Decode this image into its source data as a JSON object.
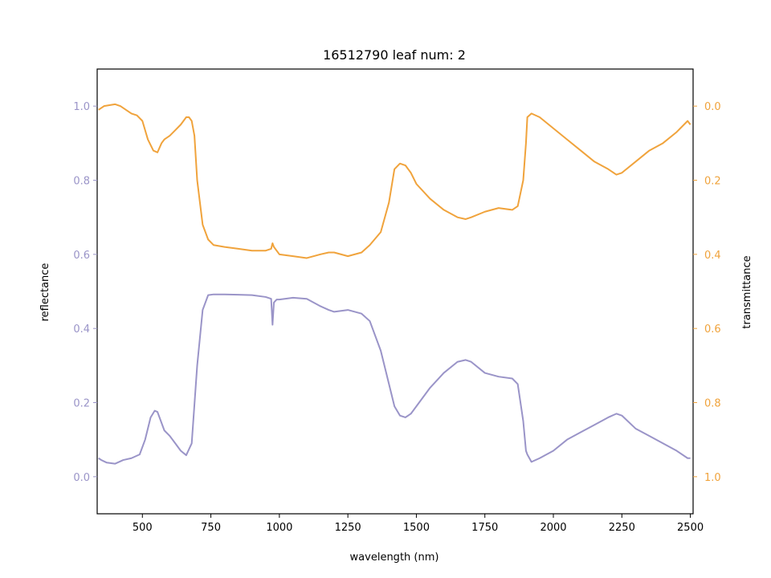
{
  "chart_data": {
    "type": "line",
    "title": "16512790 leaf num: 2",
    "xlabel": "wavelength (nm)",
    "xlim": [
      335,
      2510
    ],
    "x_ticks": [
      500,
      750,
      1000,
      1250,
      1500,
      1750,
      2000,
      2250,
      2500
    ],
    "y_left": {
      "label": "reflectance",
      "lim": [
        -0.1,
        1.1
      ],
      "ticks": [
        0.0,
        0.2,
        0.4,
        0.6,
        0.8,
        1.0
      ],
      "tick_labels": [
        "0.0",
        "0.2",
        "0.4",
        "0.6",
        "0.8",
        "1.0"
      ],
      "color": "#9a94c8"
    },
    "y_right": {
      "label": "transmittance",
      "lim": [
        1.1,
        -0.1
      ],
      "inverted": true,
      "ticks": [
        0.0,
        0.2,
        0.4,
        0.6,
        0.8,
        1.0
      ],
      "tick_labels": [
        "0.0",
        "0.2",
        "0.4",
        "0.6",
        "0.8",
        "1.0"
      ],
      "color": "#f0a33c"
    },
    "series": [
      {
        "axis": "left",
        "color": "#9a94c8",
        "x": [
          340,
          350,
          370,
          400,
          430,
          460,
          490,
          510,
          530,
          545,
          555,
          565,
          580,
          600,
          620,
          640,
          660,
          680,
          700,
          720,
          740,
          760,
          800,
          850,
          900,
          950,
          970,
          975,
          980,
          990,
          1000,
          1050,
          1100,
          1150,
          1180,
          1200,
          1250,
          1300,
          1330,
          1370,
          1400,
          1420,
          1440,
          1460,
          1480,
          1500,
          1550,
          1600,
          1650,
          1680,
          1700,
          1750,
          1800,
          1850,
          1870,
          1890,
          1900,
          1905,
          1920,
          1950,
          2000,
          2050,
          2100,
          2150,
          2200,
          2230,
          2250,
          2300,
          2350,
          2400,
          2450,
          2490,
          2500
        ],
        "values": [
          0.05,
          0.045,
          0.038,
          0.035,
          0.045,
          0.05,
          0.06,
          0.1,
          0.16,
          0.178,
          0.175,
          0.155,
          0.125,
          0.11,
          0.09,
          0.07,
          0.058,
          0.09,
          0.3,
          0.45,
          0.49,
          0.492,
          0.492,
          0.491,
          0.49,
          0.485,
          0.48,
          0.41,
          0.47,
          0.478,
          0.478,
          0.483,
          0.48,
          0.46,
          0.45,
          0.445,
          0.45,
          0.44,
          0.42,
          0.34,
          0.25,
          0.19,
          0.165,
          0.16,
          0.17,
          0.19,
          0.24,
          0.28,
          0.31,
          0.315,
          0.31,
          0.28,
          0.27,
          0.265,
          0.25,
          0.15,
          0.07,
          0.06,
          0.04,
          0.05,
          0.07,
          0.1,
          0.12,
          0.14,
          0.16,
          0.17,
          0.165,
          0.13,
          0.11,
          0.09,
          0.07,
          0.05,
          0.05
        ]
      },
      {
        "axis": "right",
        "color": "#f0a33c",
        "x": [
          340,
          360,
          400,
          420,
          440,
          460,
          480,
          500,
          520,
          540,
          555,
          570,
          580,
          600,
          620,
          640,
          660,
          670,
          680,
          690,
          700,
          720,
          740,
          760,
          800,
          850,
          900,
          950,
          970,
          975,
          980,
          1000,
          1050,
          1100,
          1150,
          1180,
          1200,
          1250,
          1300,
          1330,
          1370,
          1400,
          1420,
          1440,
          1460,
          1480,
          1500,
          1550,
          1600,
          1650,
          1680,
          1700,
          1750,
          1800,
          1850,
          1870,
          1890,
          1900,
          1905,
          1920,
          1950,
          2000,
          2050,
          2100,
          2150,
          2200,
          2230,
          2250,
          2300,
          2350,
          2400,
          2450,
          2490,
          2500
        ],
        "values": [
          0.01,
          0.0,
          -0.005,
          0.0,
          0.01,
          0.02,
          0.025,
          0.04,
          0.09,
          0.12,
          0.125,
          0.1,
          0.09,
          0.08,
          0.065,
          0.05,
          0.03,
          0.03,
          0.04,
          0.08,
          0.2,
          0.32,
          0.36,
          0.375,
          0.38,
          0.385,
          0.39,
          0.39,
          0.385,
          0.37,
          0.38,
          0.4,
          0.405,
          0.41,
          0.4,
          0.395,
          0.395,
          0.405,
          0.395,
          0.375,
          0.34,
          0.26,
          0.17,
          0.155,
          0.16,
          0.18,
          0.21,
          0.25,
          0.28,
          0.3,
          0.305,
          0.3,
          0.285,
          0.275,
          0.28,
          0.27,
          0.2,
          0.1,
          0.03,
          0.02,
          0.03,
          0.06,
          0.09,
          0.12,
          0.15,
          0.17,
          0.185,
          0.18,
          0.15,
          0.12,
          0.1,
          0.07,
          0.04,
          0.05
        ]
      }
    ]
  }
}
